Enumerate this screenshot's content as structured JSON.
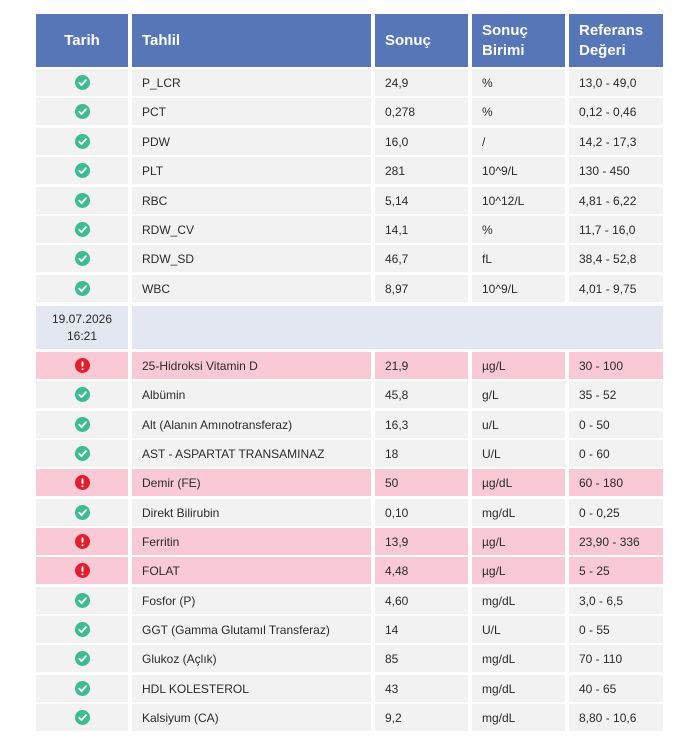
{
  "table": {
    "header": [
      "Tarih",
      "Tahlil",
      "Sonuç",
      "Sonuç Birimi",
      "Referans Değeri"
    ],
    "sections": [
      {
        "rows": [
          [
            "P_LCR",
            "24,9",
            "%",
            "13,0 - 49,0"
          ],
          [
            "PCT",
            "0,278",
            "%",
            "0,12 - 0,46"
          ],
          [
            "PDW",
            "16,0",
            "/",
            "14,2 - 17,3"
          ],
          [
            "PLT",
            "281",
            "10^9/L",
            "130 - 450"
          ],
          [
            "RBC",
            "5,14",
            "10^12/L",
            "4,81 - 6,22"
          ],
          [
            "RDW_CV",
            "14,1",
            "%",
            "11,7 - 16,0"
          ],
          [
            "RDW_SD",
            "46,7",
            "fL",
            "38,4 - 52,8"
          ],
          [
            "WBC",
            "8,97",
            "10^9/L",
            "4,01 - 9,75"
          ]
        ]
      },
      {
        "date": "19.07.2026",
        "time": "16:21",
        "rows": [
          [
            "25-Hidroksi Vitamin D",
            "21,9",
            "µg/L",
            "30 - 100"
          ],
          [
            "Albümin",
            "45,8",
            "g/L",
            "35 - 52"
          ],
          [
            "Alt (Alanın Amınotransferaz)",
            "16,3",
            "u/L",
            "0 - 50"
          ],
          [
            "AST - ASPARTAT TRANSAMINAZ",
            "18",
            "U/L",
            "0 - 60"
          ],
          [
            "Demir (FE)",
            "50",
            "µg/dL",
            "60 - 180"
          ],
          [
            "Direkt Bilirubin",
            "0,10",
            "mg/dL",
            "0 - 0,25"
          ],
          [
            "Ferritin",
            "13,9",
            "µg/L",
            "23,90 - 336"
          ],
          [
            "FOLAT",
            "4,48",
            "µg/L",
            "5 - 25"
          ],
          [
            "Fosfor (P)",
            "4,60",
            "mg/dL",
            "3,0 - 6,5"
          ],
          [
            "GGT  (Gamma Glutamıl Transferaz)",
            "14",
            "U/L",
            "0 - 55"
          ],
          [
            "Glukoz (Açlık)",
            "85",
            "mg/dL",
            "70 - 110"
          ],
          [
            "HDL KOLESTEROL",
            "43",
            "mg/dL",
            "40 - 65"
          ],
          [
            "Kalsiyum (CA)",
            "9,2",
            "mg/dL",
            "8,80 - 10,6"
          ]
        ]
      }
    ]
  }
}
